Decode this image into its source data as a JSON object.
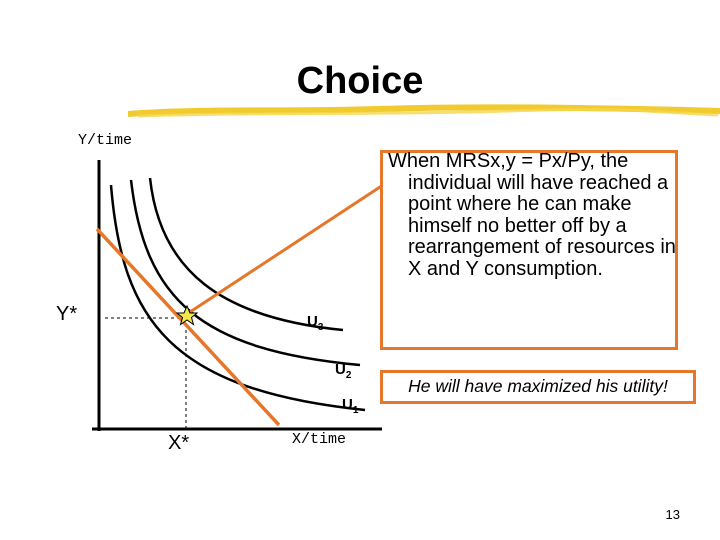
{
  "slide": {
    "title": "Choice",
    "page_number": "13"
  },
  "diagram": {
    "y_axis_label": "Y/time",
    "x_axis_label": "X/time",
    "y_star_label": "Y*",
    "x_star_label": "X*",
    "curves": [
      {
        "name": "U",
        "subscript": "3"
      },
      {
        "name": "U",
        "subscript": "2"
      },
      {
        "name": "U",
        "subscript": "1"
      }
    ]
  },
  "callout": {
    "first_line": "When MRSx,y = Px/Py, the",
    "rest": "individual will have reached a point where he can make himself no better off by a rearrangement of resources in X and Y consumption."
  },
  "conclusion": "He will have maximized his utility!",
  "colors": {
    "accent": "#e6762a",
    "underline": "#f0c419",
    "star": "#f2e84a"
  }
}
